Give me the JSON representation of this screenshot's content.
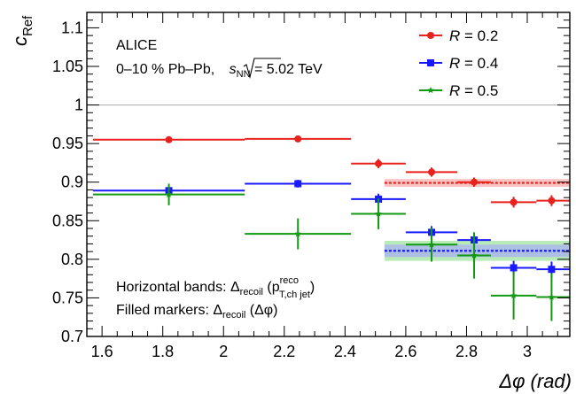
{
  "chart_data": {
    "type": "scatter",
    "xlabel": "Δφ (rad)",
    "ylabel_main": "c",
    "ylabel_sub": "Ref",
    "xlim": [
      1.55,
      3.14
    ],
    "ylim": [
      0.7,
      1.12
    ],
    "x_ticks": [
      1.6,
      1.8,
      2.0,
      2.2,
      2.4,
      2.6,
      2.8,
      3.0
    ],
    "x_tick_labels": [
      "1.6",
      "1.8",
      "2",
      "2.2",
      "2.4",
      "2.6",
      "2.8",
      "3"
    ],
    "y_ticks": [
      0.7,
      0.75,
      0.8,
      0.85,
      0.9,
      0.95,
      1.0,
      1.05,
      1.1
    ],
    "y_tick_labels": [
      "0.7",
      "0.75",
      "0.8",
      "0.85",
      "0.9",
      "0.95",
      "1",
      "1.05",
      "1.1"
    ],
    "reference_line": 1.0,
    "annotations": {
      "experiment": "ALICE",
      "system": "0–10 % Pb–Pb, √s_NN = 5.02 TeV",
      "system_prefix": "0–10 % Pb–Pb, ",
      "system_sqrt": "s",
      "system_sub": "NN",
      "system_suffix": " = 5.02 TeV",
      "note_bands_prefix": "Horizontal bands: Δ",
      "note_bands_sub": "recoil",
      "note_bands_paren": " (p",
      "note_bands_sup": "reco",
      "note_bands_sub2": "T,ch jet",
      "note_bands_close": ")",
      "note_markers_prefix": "Filled markers: Δ",
      "note_markers_sub": "recoil",
      "note_markers_suffix": " (Δφ)"
    },
    "legend_position": "top-right",
    "series": [
      {
        "name": "R = 0.2",
        "name_var": "R",
        "name_val": " = 0.2",
        "color": "#e8211c",
        "marker": "circle",
        "points": [
          {
            "x": 1.82,
            "xlo": 1.57,
            "xhi": 2.07,
            "y": 0.955,
            "ylo": 0.952,
            "yhi": 0.958
          },
          {
            "x": 2.245,
            "xlo": 2.07,
            "xhi": 2.42,
            "y": 0.956,
            "ylo": 0.952,
            "yhi": 0.96
          },
          {
            "x": 2.51,
            "xlo": 2.42,
            "xhi": 2.6,
            "y": 0.924,
            "ylo": 0.918,
            "yhi": 0.93
          },
          {
            "x": 2.685,
            "xlo": 2.6,
            "xhi": 2.77,
            "y": 0.913,
            "ylo": 0.907,
            "yhi": 0.919
          },
          {
            "x": 2.825,
            "xlo": 2.77,
            "xhi": 2.88,
            "y": 0.9,
            "ylo": 0.894,
            "yhi": 0.906
          },
          {
            "x": 2.955,
            "xlo": 2.88,
            "xhi": 3.03,
            "y": 0.874,
            "ylo": 0.867,
            "yhi": 0.881
          },
          {
            "x": 3.08,
            "xlo": 3.03,
            "xhi": 3.14,
            "y": 0.876,
            "ylo": 0.869,
            "yhi": 0.883
          }
        ],
        "band": {
          "x0": 2.53,
          "x1": 3.14,
          "y": 0.899,
          "ylo": 0.894,
          "yhi": 0.904
        }
      },
      {
        "name": "R = 0.4",
        "name_var": "R",
        "name_val": " = 0.4",
        "color": "#1a1aff",
        "marker": "square",
        "points": [
          {
            "x": 1.82,
            "xlo": 1.57,
            "xhi": 2.07,
            "y": 0.889,
            "ylo": 0.885,
            "yhi": 0.893
          },
          {
            "x": 2.245,
            "xlo": 2.07,
            "xhi": 2.42,
            "y": 0.898,
            "ylo": 0.893,
            "yhi": 0.903
          },
          {
            "x": 2.51,
            "xlo": 2.42,
            "xhi": 2.6,
            "y": 0.878,
            "ylo": 0.871,
            "yhi": 0.885
          },
          {
            "x": 2.685,
            "xlo": 2.6,
            "xhi": 2.77,
            "y": 0.835,
            "ylo": 0.827,
            "yhi": 0.843
          },
          {
            "x": 2.825,
            "xlo": 2.77,
            "xhi": 2.88,
            "y": 0.825,
            "ylo": 0.817,
            "yhi": 0.833
          },
          {
            "x": 2.955,
            "xlo": 2.88,
            "xhi": 3.03,
            "y": 0.789,
            "ylo": 0.78,
            "yhi": 0.798
          },
          {
            "x": 3.08,
            "xlo": 3.03,
            "xhi": 3.14,
            "y": 0.787,
            "ylo": 0.777,
            "yhi": 0.797
          }
        ],
        "band": {
          "x0": 2.53,
          "x1": 3.14,
          "y": 0.811,
          "ylo": 0.803,
          "yhi": 0.819
        }
      },
      {
        "name": "R = 0.5",
        "name_var": "R",
        "name_val": " = 0.5",
        "color": "#119911",
        "marker": "star",
        "points": [
          {
            "x": 1.82,
            "xlo": 1.57,
            "xhi": 2.07,
            "y": 0.884,
            "ylo": 0.87,
            "yhi": 0.898
          },
          {
            "x": 2.245,
            "xlo": 2.07,
            "xhi": 2.42,
            "y": 0.833,
            "ylo": 0.813,
            "yhi": 0.853
          },
          {
            "x": 2.51,
            "xlo": 2.42,
            "xhi": 2.6,
            "y": 0.859,
            "ylo": 0.839,
            "yhi": 0.879
          },
          {
            "x": 2.685,
            "xlo": 2.6,
            "xhi": 2.77,
            "y": 0.819,
            "ylo": 0.797,
            "yhi": 0.841
          },
          {
            "x": 2.825,
            "xlo": 2.77,
            "xhi": 2.88,
            "y": 0.805,
            "ylo": 0.775,
            "yhi": 0.835
          },
          {
            "x": 2.955,
            "xlo": 2.88,
            "xhi": 3.03,
            "y": 0.753,
            "ylo": 0.722,
            "yhi": 0.784
          },
          {
            "x": 3.08,
            "xlo": 3.03,
            "xhi": 3.14,
            "y": 0.751,
            "ylo": 0.72,
            "yhi": 0.782
          }
        ],
        "band": {
          "x0": 2.53,
          "x1": 3.14,
          "y": 0.811,
          "ylo": 0.798,
          "yhi": 0.824
        }
      }
    ]
  }
}
